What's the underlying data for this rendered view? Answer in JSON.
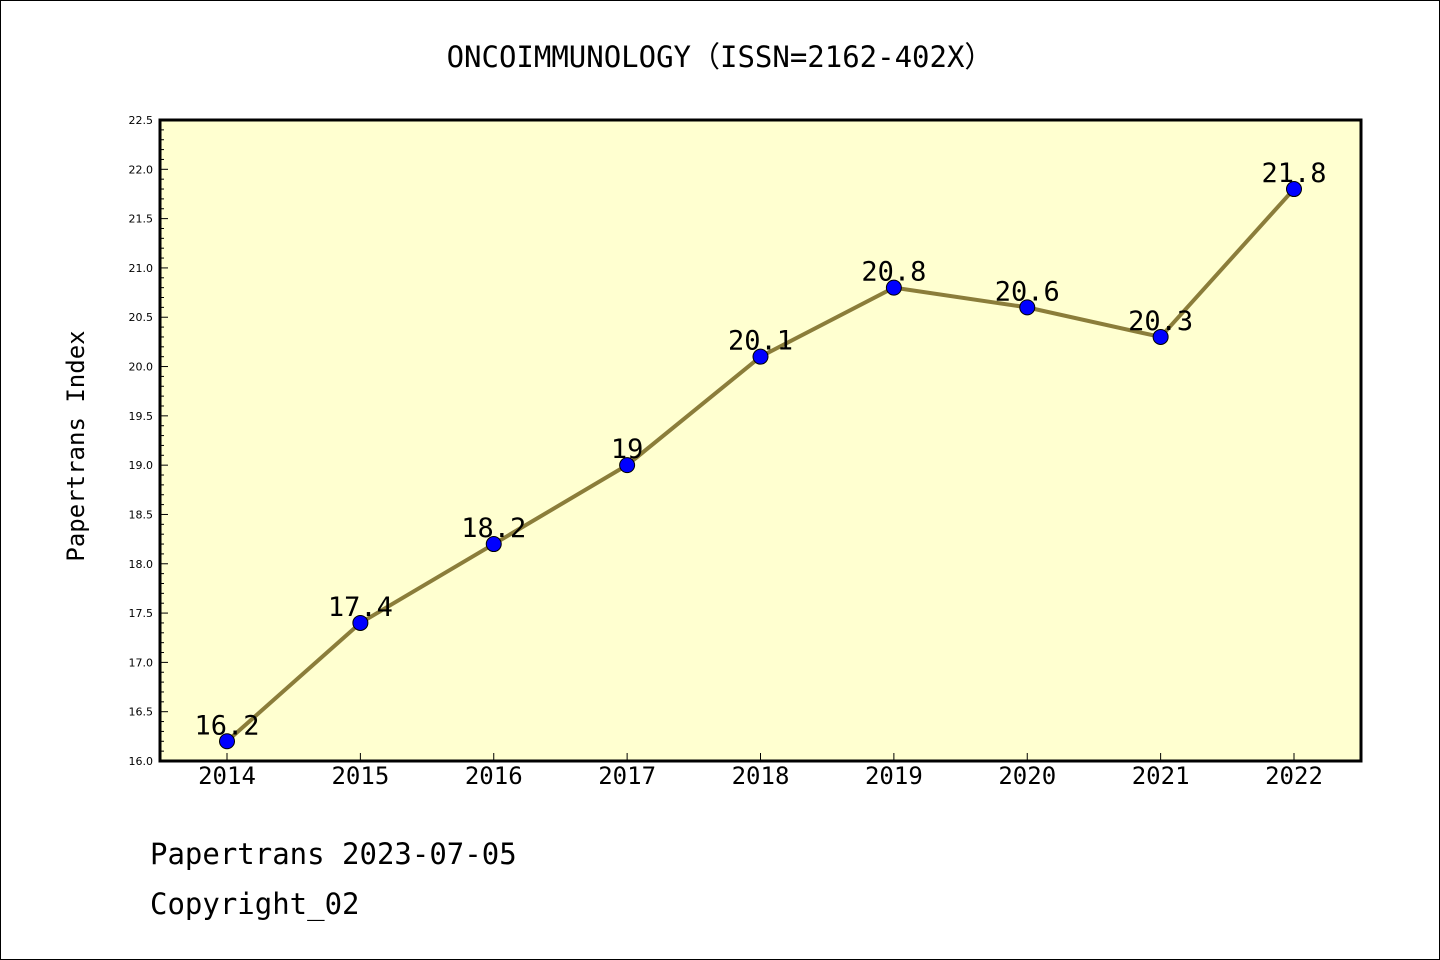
{
  "chart_data": {
    "type": "line",
    "title": "ONCOIMMUNOLOGY（ISSN=2162-402X）",
    "xlabel": "",
    "ylabel": "Papertrans Index",
    "categories": [
      "2014",
      "2015",
      "2016",
      "2017",
      "2018",
      "2019",
      "2020",
      "2021",
      "2022"
    ],
    "values": [
      16.2,
      17.4,
      18.2,
      19,
      20.1,
      20.8,
      20.6,
      20.3,
      21.8
    ],
    "data_labels": [
      "16.2",
      "17.4",
      "18.2",
      "19",
      "20.1",
      "20.8",
      "20.6",
      "20.3",
      "21.8"
    ],
    "ylim": [
      16.0,
      22.5
    ],
    "yticks": [
      "16.0",
      "16.5",
      "17.0",
      "17.5",
      "18.0",
      "18.5",
      "19.0",
      "19.5",
      "20.0",
      "20.5",
      "21.0",
      "21.5",
      "22.0",
      "22.5"
    ],
    "grid": false,
    "colors": {
      "plot_background": "#ffffd0",
      "line": "#8b7d3a",
      "marker": "#0000ff"
    }
  },
  "footer": {
    "line1": "Papertrans 2023-07-05",
    "line2": "Copyright_02"
  }
}
